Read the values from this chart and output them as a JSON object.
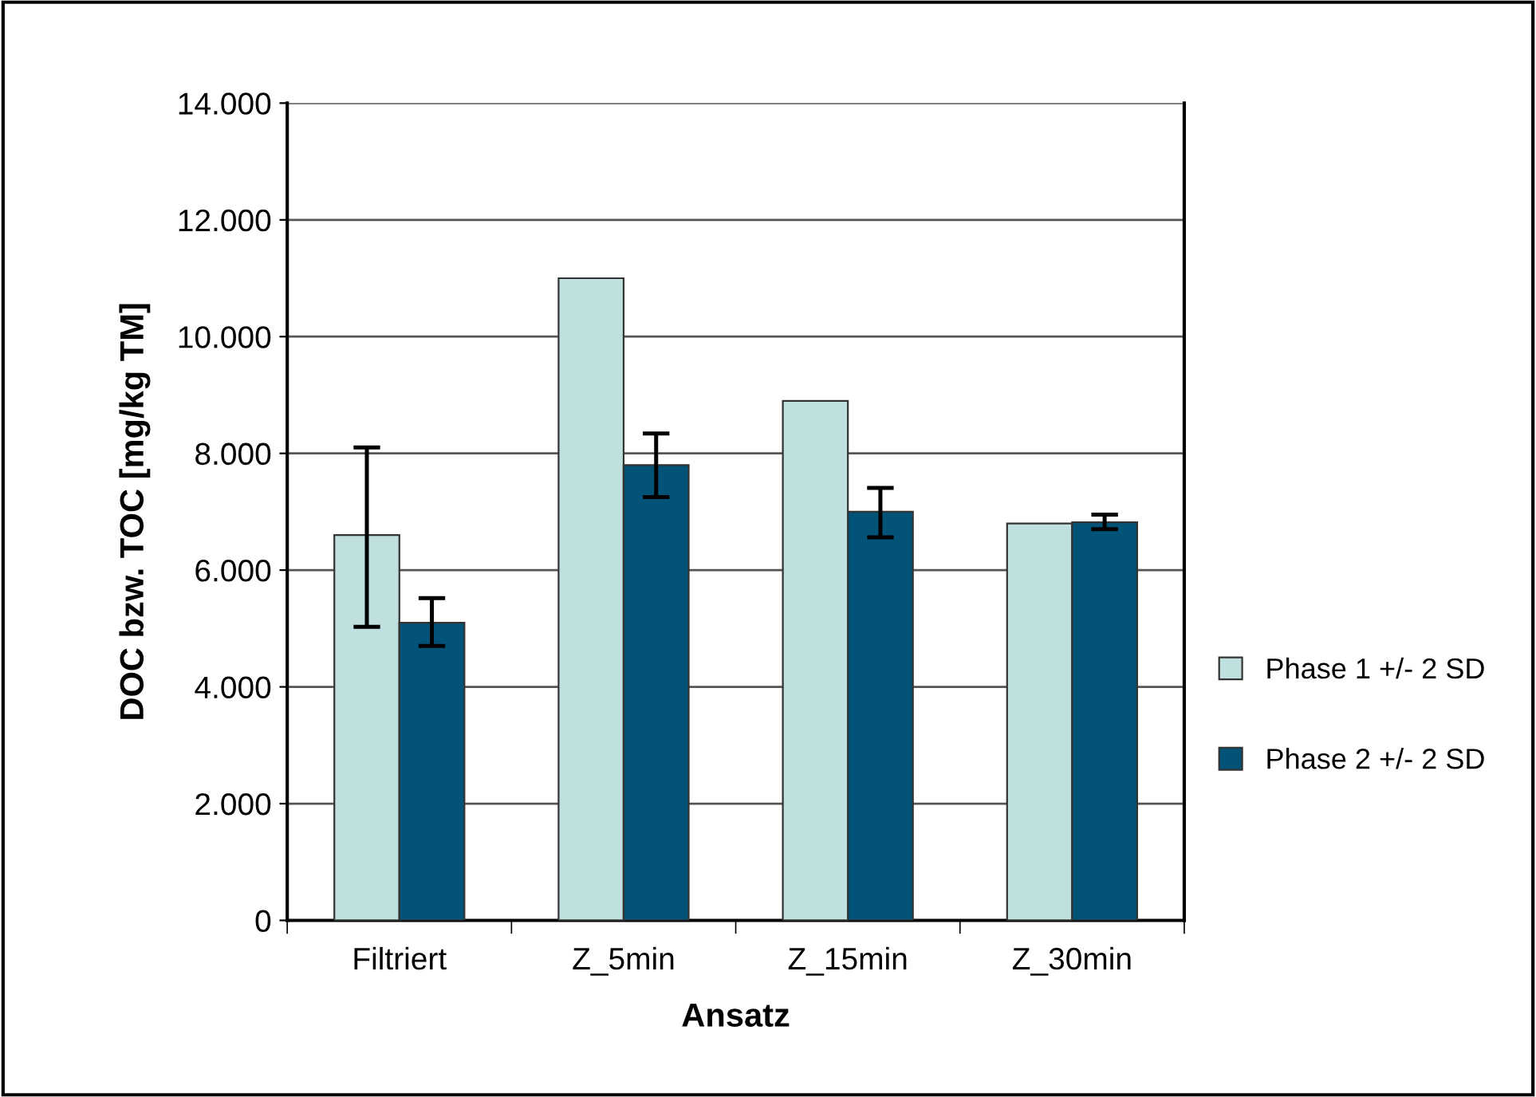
{
  "chart_data": {
    "type": "bar",
    "xlabel": "Ansatz",
    "ylabel": "DOC bzw. TOC [mg/kg TM]",
    "categories": [
      "Filtriert",
      "Z_5min",
      "Z_15min",
      "Z_30min"
    ],
    "series": [
      {
        "name": "Phase 1 +/- 2 SD",
        "color": "#c0e0df",
        "values": [
          6600,
          11000,
          8900,
          6800
        ],
        "errors": [
          [
            5030,
            8100
          ],
          null,
          null,
          null
        ]
      },
      {
        "name": "Phase 2 +/- 2 SD",
        "color": "#035277",
        "values": [
          5100,
          7800,
          7000,
          6820
        ],
        "errors": [
          [
            4700,
            5520
          ],
          [
            7250,
            8340
          ],
          [
            6560,
            7410
          ],
          [
            6700,
            6950
          ]
        ]
      }
    ],
    "ylim": [
      0,
      14000
    ],
    "yticks": [
      {
        "value": 0,
        "label": "0"
      },
      {
        "value": 2000,
        "label": "2.000"
      },
      {
        "value": 4000,
        "label": "4.000"
      },
      {
        "value": 6000,
        "label": "6.000"
      },
      {
        "value": 8000,
        "label": "8.000"
      },
      {
        "value": 10000,
        "label": "10.000"
      },
      {
        "value": 12000,
        "label": "12.000"
      },
      {
        "value": 14000,
        "label": "14.000"
      }
    ],
    "grid": "y",
    "legend": "right"
  }
}
